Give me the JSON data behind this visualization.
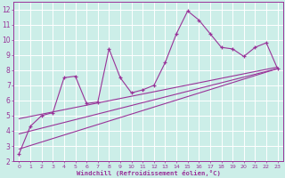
{
  "xlabel": "Windchill (Refroidissement éolien,°C)",
  "bg_color": "#cceee8",
  "line_color": "#993399",
  "grid_color": "#ffffff",
  "xlim": [
    -0.5,
    23.5
  ],
  "ylim": [
    2,
    12.5
  ],
  "xticks": [
    0,
    1,
    2,
    3,
    4,
    5,
    6,
    7,
    8,
    9,
    10,
    11,
    12,
    13,
    14,
    15,
    16,
    17,
    18,
    19,
    20,
    21,
    22,
    23
  ],
  "yticks": [
    2,
    3,
    4,
    5,
    6,
    7,
    8,
    9,
    10,
    11,
    12
  ],
  "series1_x": [
    0,
    1,
    2,
    3,
    4,
    5,
    6,
    7,
    8,
    9,
    10,
    11,
    12,
    13,
    14,
    15,
    16,
    17,
    18,
    19,
    20,
    21,
    22,
    23
  ],
  "series1_y": [
    2.5,
    4.3,
    5.0,
    5.2,
    7.5,
    7.6,
    5.8,
    5.9,
    9.4,
    7.5,
    6.5,
    6.7,
    7.0,
    8.5,
    10.4,
    11.9,
    11.3,
    10.4,
    9.5,
    9.4,
    8.9,
    9.5,
    9.8,
    8.1
  ],
  "series2_x": [
    0,
    23
  ],
  "series2_y": [
    2.8,
    8.1
  ],
  "series3_x": [
    0,
    23
  ],
  "series3_y": [
    3.8,
    8.1
  ],
  "series4_x": [
    0,
    23
  ],
  "series4_y": [
    4.8,
    8.2
  ]
}
